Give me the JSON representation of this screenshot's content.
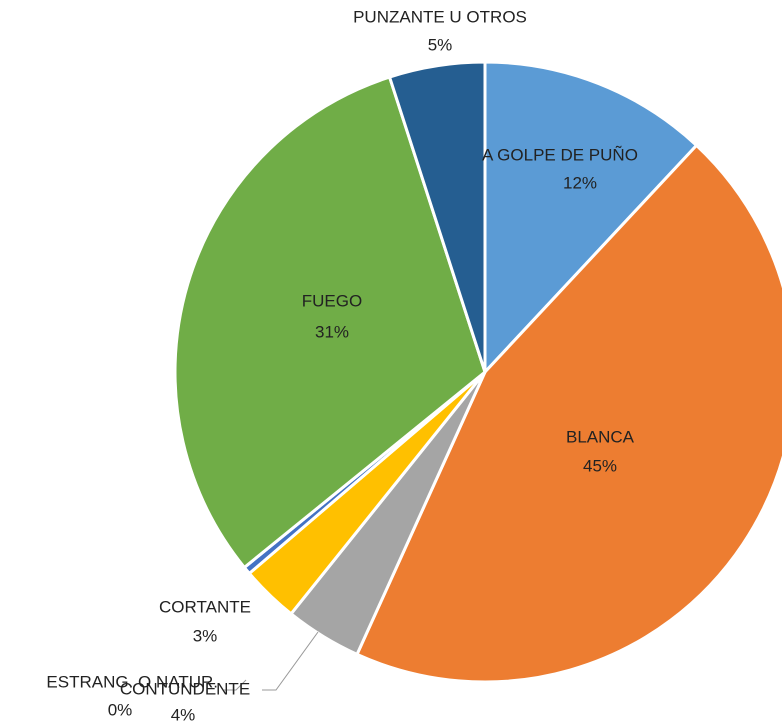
{
  "chart_data": {
    "type": "pie",
    "categories": [
      "A GOLPE DE PUÑO",
      "BLANCA",
      "CONTUNDENTE",
      "CORTANTE",
      "ESTRANG. O NATUR.",
      "FUEGO",
      "PUNZANTE U OTROS"
    ],
    "values": [
      12,
      45,
      4,
      3,
      0.4,
      31,
      5
    ],
    "value_labels": [
      "12%",
      "45%",
      "4%",
      "3%",
      "0%",
      "31%",
      "5%"
    ],
    "colors": [
      "#5b9bd5",
      "#ed7d31",
      "#a5a5a5",
      "#ffc000",
      "#4472c4",
      "#70ad47",
      "#255e91"
    ]
  }
}
